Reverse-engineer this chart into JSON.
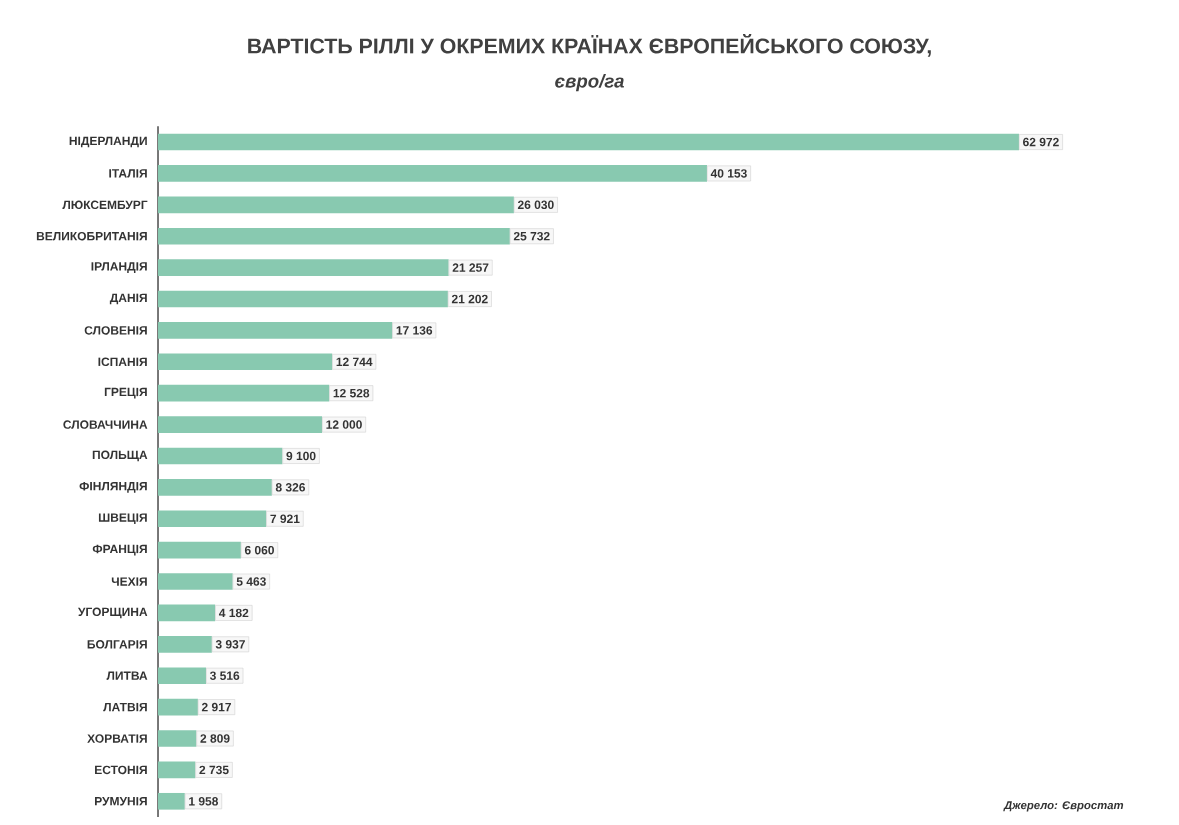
{
  "chart_data": {
    "type": "bar",
    "orientation": "horizontal",
    "title": "ВАРТІСТЬ РІЛЛІ У ОКРЕМИХ КРАЇНАХ ЄВРОПЕЙСЬКОГО СОЮЗУ,",
    "subtitle": "євро/га",
    "categories": [
      "НІДЕРЛАНДИ",
      "ІТАЛІЯ",
      "ЛЮКСЕМБУРГ",
      "ВЕЛИКОБРИТАНІЯ",
      "ІРЛАНДІЯ",
      "ДАНІЯ",
      "СЛОВЕНІЯ",
      "ІСПАНІЯ",
      "ГРЕЦІЯ",
      "СЛОВАЧЧИНА",
      "ПОЛЬЩА",
      "ФІНЛЯНДІЯ",
      "ШВЕЦІЯ",
      "ФРАНЦІЯ",
      "ЧЕХІЯ",
      "УГОРЩИНА",
      "БОЛГАРІЯ",
      "ЛИТВА",
      "ЛАТВІЯ",
      "ХОРВАТІЯ",
      "ЕСТОНІЯ",
      "РУМУНІЯ"
    ],
    "values": [
      62972,
      40153,
      26030,
      25732,
      21257,
      21202,
      17136,
      12744,
      12528,
      12000,
      9100,
      8326,
      7921,
      6060,
      5463,
      4182,
      3937,
      3516,
      2917,
      2809,
      2735,
      1958
    ],
    "value_labels": [
      "62 972",
      "40 153",
      "26 030",
      "25 732",
      "21 257",
      "21 202",
      "17 136",
      "12 744",
      "12 528",
      "12 000",
      "9 100",
      "8 326",
      "7 921",
      "6 060",
      "5 463",
      "4 182",
      "3 937",
      "3 516",
      "2 917",
      "2 809",
      "2 735",
      "1 958"
    ],
    "color": "#88c9b0",
    "tick_labels": "y",
    "annotations": [
      "Джерело: Євростат"
    ]
  }
}
